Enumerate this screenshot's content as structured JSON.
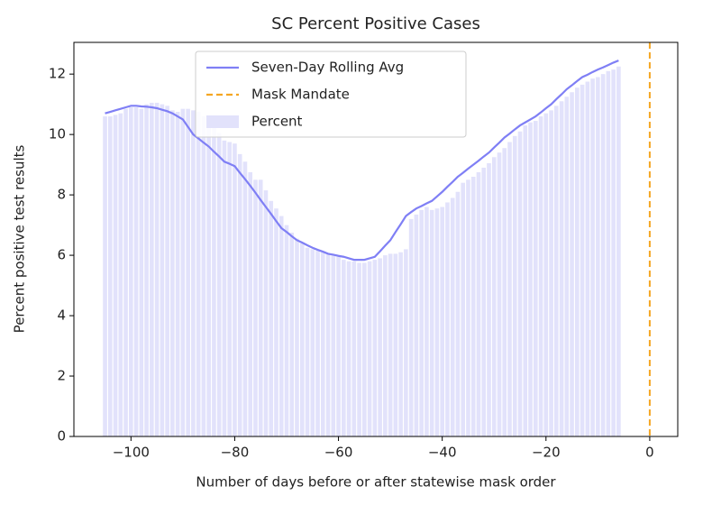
{
  "chart_data": {
    "type": "bar-line",
    "title": "SC Percent Positive Cases",
    "xlabel": "Number of days before or after statewise mask order",
    "ylabel": "Percent positive test results",
    "x": [
      -105,
      -104,
      -103,
      -102,
      -101,
      -100,
      -99,
      -98,
      -97,
      -96,
      -95,
      -94,
      -93,
      -92,
      -91,
      -90,
      -89,
      -88,
      -87,
      -86,
      -85,
      -84,
      -83,
      -82,
      -81,
      -80,
      -79,
      -78,
      -77,
      -76,
      -75,
      -74,
      -73,
      -72,
      -71,
      -70,
      -69,
      -68,
      -67,
      -66,
      -65,
      -64,
      -63,
      -62,
      -61,
      -60,
      -59,
      -58,
      -57,
      -56,
      -55,
      -54,
      -53,
      -52,
      -51,
      -50,
      -49,
      -48,
      -47,
      -46,
      -45,
      -44,
      -43,
      -42,
      -41,
      -40,
      -39,
      -38,
      -37,
      -36,
      -35,
      -34,
      -33,
      -32,
      -31,
      -30,
      -29,
      -28,
      -27,
      -26,
      -25,
      -24,
      -23,
      -22,
      -21,
      -20,
      -19,
      -18,
      -17,
      -16,
      -15,
      -14,
      -13,
      -12,
      -11,
      -10,
      -9,
      -8,
      -7,
      -6
    ],
    "series": [
      {
        "name": "Seven-Day Rolling Avg",
        "kind": "line",
        "color": "#7f7ff5",
        "values": [
          10.7,
          10.75,
          10.8,
          10.85,
          10.9,
          10.95,
          10.95,
          10.93,
          10.92,
          10.9,
          10.87,
          10.82,
          10.77,
          10.7,
          10.6,
          10.5,
          10.25,
          10.0,
          9.87,
          9.73,
          9.6,
          9.43,
          9.27,
          9.1,
          9.03,
          8.95,
          8.73,
          8.52,
          8.3,
          8.07,
          7.83,
          7.6,
          7.37,
          7.13,
          6.9,
          6.77,
          6.63,
          6.5,
          6.42,
          6.33,
          6.25,
          6.18,
          6.12,
          6.05,
          6.02,
          5.98,
          5.95,
          5.9,
          5.85,
          5.85,
          5.85,
          5.9,
          5.95,
          6.13,
          6.32,
          6.5,
          6.77,
          7.03,
          7.3,
          7.43,
          7.55,
          7.63,
          7.72,
          7.8,
          7.95,
          8.1,
          8.27,
          8.43,
          8.6,
          8.73,
          8.87,
          9.0,
          9.13,
          9.27,
          9.4,
          9.57,
          9.73,
          9.9,
          10.03,
          10.17,
          10.3,
          10.4,
          10.5,
          10.6,
          10.73,
          10.87,
          11.0,
          11.17,
          11.33,
          11.5,
          11.63,
          11.77,
          11.9,
          11.98,
          12.07,
          12.15,
          12.22,
          12.3,
          12.38,
          12.45
        ]
      },
      {
        "name": "Percent",
        "kind": "bar",
        "color": "#e2e2fb",
        "values": [
          10.6,
          10.6,
          10.65,
          10.7,
          10.85,
          10.9,
          10.9,
          10.85,
          11.0,
          11.05,
          11.05,
          11.0,
          10.95,
          10.8,
          10.75,
          10.85,
          10.85,
          10.8,
          10.75,
          10.6,
          10.4,
          10.3,
          10.05,
          9.8,
          9.75,
          9.7,
          9.35,
          9.1,
          8.75,
          8.5,
          8.5,
          8.15,
          7.8,
          7.55,
          7.3,
          7.0,
          6.75,
          6.55,
          6.4,
          6.25,
          6.2,
          6.15,
          6.1,
          6.05,
          6.0,
          5.95,
          5.85,
          5.8,
          5.8,
          5.75,
          5.75,
          5.8,
          5.85,
          5.9,
          6.0,
          6.05,
          6.05,
          6.1,
          6.2,
          7.2,
          7.35,
          7.5,
          7.6,
          7.5,
          7.55,
          7.6,
          7.75,
          7.9,
          8.1,
          8.4,
          8.5,
          8.6,
          8.75,
          8.9,
          9.05,
          9.25,
          9.4,
          9.55,
          9.75,
          9.95,
          10.1,
          10.3,
          10.4,
          10.45,
          10.6,
          10.7,
          10.8,
          10.95,
          11.1,
          11.25,
          11.4,
          11.55,
          11.65,
          11.75,
          11.85,
          11.9,
          12.0,
          12.1,
          12.15,
          12.25
        ]
      }
    ],
    "vline": {
      "name": "Mask Mandate",
      "x": 0,
      "color": "#f5a623"
    },
    "xlim": [
      -111,
      5.4
    ],
    "ylim": [
      0,
      13.05
    ],
    "xticks": [
      {
        "value": -100,
        "label": "−100"
      },
      {
        "value": -80,
        "label": "−80"
      },
      {
        "value": -60,
        "label": "−60"
      },
      {
        "value": -40,
        "label": "−40"
      },
      {
        "value": -20,
        "label": "−20"
      },
      0
    ],
    "yticks": [
      0,
      2,
      4,
      6,
      8,
      10,
      12
    ],
    "legend": "upper center"
  }
}
